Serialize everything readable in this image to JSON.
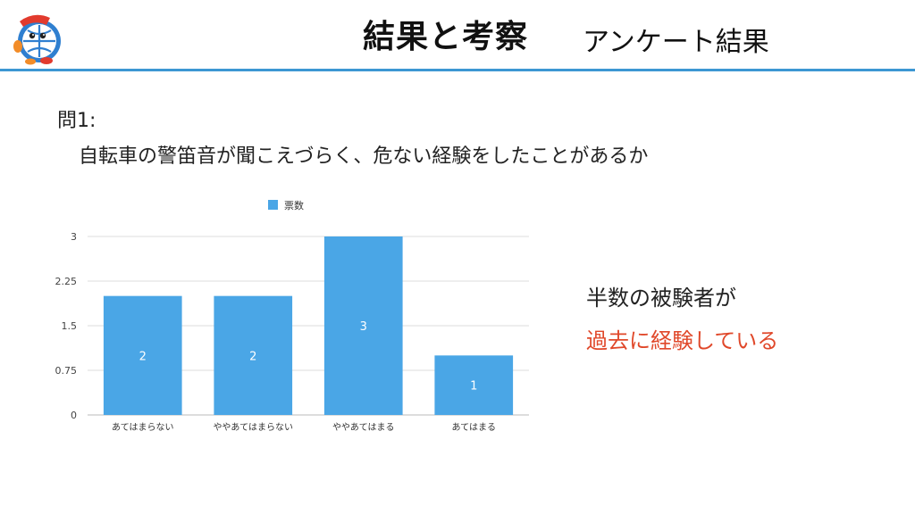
{
  "header": {
    "title": "結果と考察",
    "subtitle": "アンケート結果"
  },
  "question": {
    "label": "問1:",
    "text": "自転車の警笛音が聞こえづらく、危ない経験をしたことがあるか"
  },
  "chart_data": {
    "type": "bar",
    "legend": "票数",
    "legend_position": "top",
    "categories": [
      "あてはまらない",
      "ややあてはまらない",
      "ややあてはまる",
      "あてはまる"
    ],
    "values": [
      2,
      2,
      3,
      1
    ],
    "ylim": [
      0,
      3
    ],
    "yticks": [
      "0",
      "0.75",
      "1.5",
      "2.25",
      "3"
    ],
    "grid": true,
    "bar_color": "#4aa6e6"
  },
  "notes": {
    "line1": "半数の被験者が",
    "line2": "過去に経験している",
    "highlight_color": "#e0482a"
  },
  "accent_color": "#3d97d3"
}
